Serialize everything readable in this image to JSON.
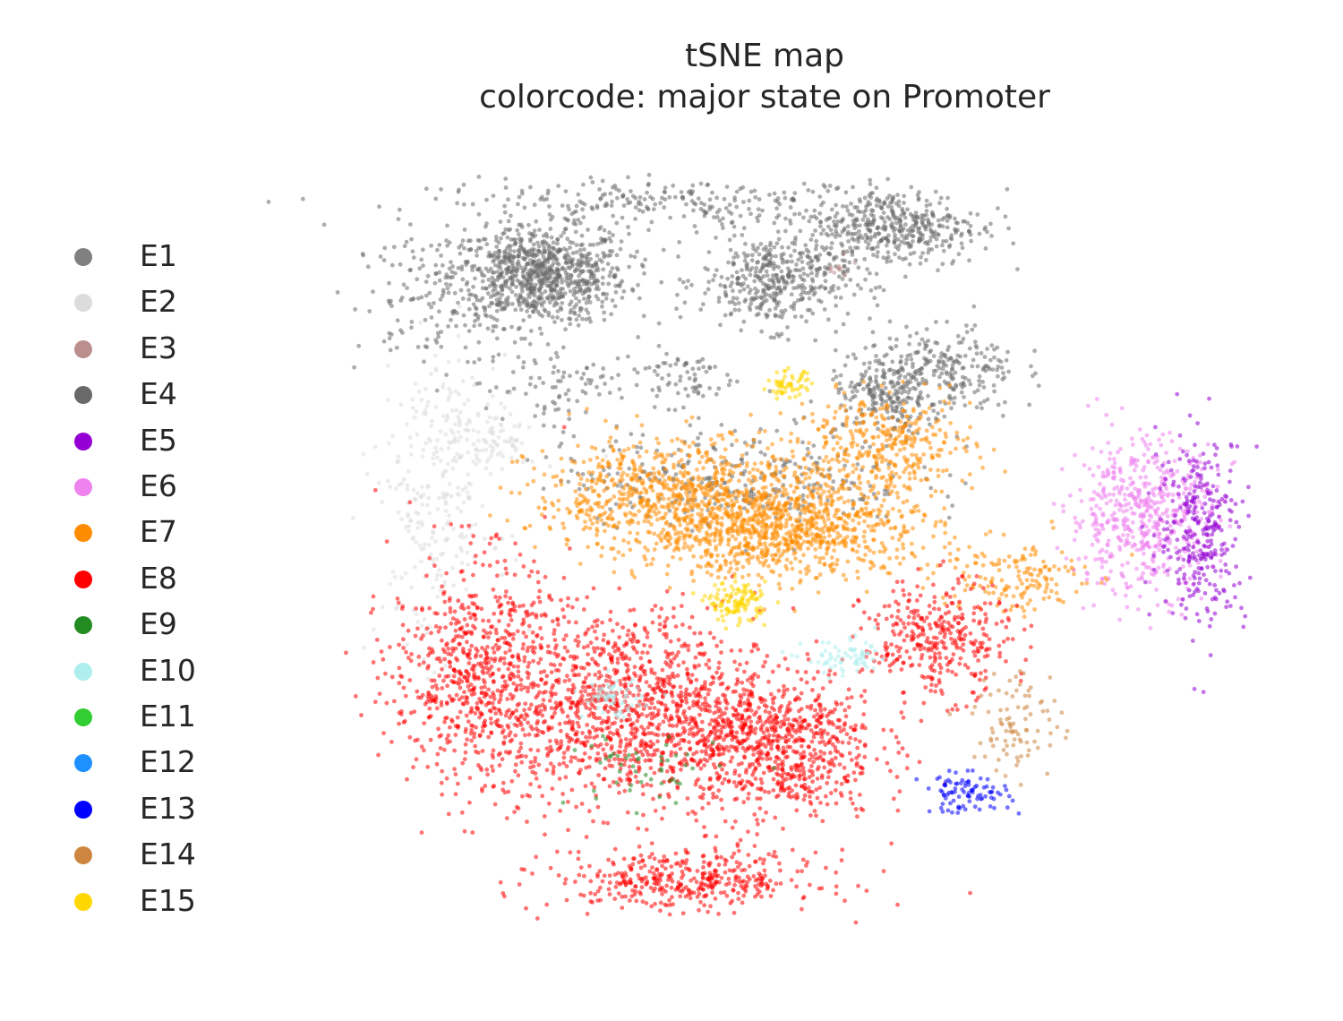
{
  "chart_data": {
    "type": "scatter",
    "title": "tSNE map",
    "subtitle": "colorcode: major state on Promoter",
    "xlabel": "",
    "ylabel": "",
    "axes_visible": false,
    "grid": false,
    "legend_position": "left",
    "xlim": [
      0,
      1
    ],
    "ylim": [
      0,
      1
    ],
    "series": [
      {
        "name": "E1",
        "color": "#808080"
      },
      {
        "name": "E2",
        "color": "#dcdcdc"
      },
      {
        "name": "E3",
        "color": "#bc8f8f"
      },
      {
        "name": "E4",
        "color": "#696969"
      },
      {
        "name": "E5",
        "color": "#9400d3"
      },
      {
        "name": "E6",
        "color": "#ee82ee"
      },
      {
        "name": "E7",
        "color": "#ff8c00"
      },
      {
        "name": "E8",
        "color": "#ff0000"
      },
      {
        "name": "E9",
        "color": "#228b22"
      },
      {
        "name": "E10",
        "color": "#afeeee"
      },
      {
        "name": "E11",
        "color": "#32cd32"
      },
      {
        "name": "E12",
        "color": "#1e90ff"
      },
      {
        "name": "E13",
        "color": "#0000ff"
      },
      {
        "name": "E14",
        "color": "#cd853f"
      },
      {
        "name": "E15",
        "color": "#ffd700"
      }
    ],
    "clusters": [
      {
        "series": "E4",
        "cx": 0.28,
        "cy": 0.58,
        "sx": 0.06,
        "sy": 0.05,
        "n": 900
      },
      {
        "series": "E4",
        "cx": 0.47,
        "cy": 0.73,
        "sx": 0.17,
        "sy": 0.025,
        "n": 260
      },
      {
        "series": "E4",
        "cx": 0.6,
        "cy": 0.57,
        "sx": 0.05,
        "sy": 0.05,
        "n": 420
      },
      {
        "series": "E4",
        "cx": 0.76,
        "cy": 0.68,
        "sx": 0.06,
        "sy": 0.04,
        "n": 420
      },
      {
        "series": "E4",
        "cx": 0.13,
        "cy": 0.52,
        "sx": 0.05,
        "sy": 0.08,
        "n": 110
      },
      {
        "series": "E4",
        "cx": 0.3,
        "cy": 0.35,
        "sx": 0.05,
        "sy": 0.05,
        "n": 90
      },
      {
        "series": "E4",
        "cx": 0.47,
        "cy": 0.37,
        "sx": 0.04,
        "sy": 0.03,
        "n": 70
      },
      {
        "series": "E4",
        "cx": 0.55,
        "cy": 0.16,
        "sx": 0.12,
        "sy": 0.05,
        "n": 300
      },
      {
        "series": "E4",
        "cx": 0.83,
        "cy": 0.38,
        "sx": 0.05,
        "sy": 0.05,
        "n": 250
      },
      {
        "series": "E4",
        "cx": 0.75,
        "cy": 0.33,
        "sx": 0.04,
        "sy": 0.04,
        "n": 200
      },
      {
        "series": "E2",
        "cx": 0.14,
        "cy": 0.1,
        "sx": 0.04,
        "sy": 0.15,
        "n": 240
      },
      {
        "series": "E2",
        "cx": 0.2,
        "cy": 0.24,
        "sx": 0.04,
        "sy": 0.04,
        "n": 120
      },
      {
        "series": "E7",
        "cx": 0.47,
        "cy": 0.12,
        "sx": 0.1,
        "sy": 0.06,
        "n": 800
      },
      {
        "series": "E7",
        "cx": 0.62,
        "cy": 0.05,
        "sx": 0.1,
        "sy": 0.05,
        "n": 900
      },
      {
        "series": "E7",
        "cx": 0.75,
        "cy": 0.23,
        "sx": 0.06,
        "sy": 0.05,
        "n": 350
      },
      {
        "series": "E7",
        "cx": 0.92,
        "cy": -0.05,
        "sx": 0.05,
        "sy": 0.04,
        "n": 150
      },
      {
        "series": "E8",
        "cx": 0.2,
        "cy": -0.25,
        "sx": 0.06,
        "sy": 0.12,
        "n": 700
      },
      {
        "series": "E8",
        "cx": 0.4,
        "cy": -0.32,
        "sx": 0.09,
        "sy": 0.1,
        "n": 1100
      },
      {
        "series": "E8",
        "cx": 0.6,
        "cy": -0.4,
        "sx": 0.07,
        "sy": 0.08,
        "n": 800
      },
      {
        "series": "E8",
        "cx": 0.48,
        "cy": -0.68,
        "sx": 0.09,
        "sy": 0.03,
        "n": 400
      },
      {
        "series": "E8",
        "cx": 0.82,
        "cy": -0.18,
        "sx": 0.05,
        "sy": 0.06,
        "n": 350
      },
      {
        "series": "E6",
        "cx": 1.1,
        "cy": 0.08,
        "sx": 0.05,
        "sy": 0.08,
        "n": 550
      },
      {
        "series": "E5",
        "cx": 1.18,
        "cy": 0.05,
        "sx": 0.03,
        "sy": 0.1,
        "n": 300
      },
      {
        "series": "E15",
        "cx": 0.55,
        "cy": -0.1,
        "sx": 0.02,
        "sy": 0.02,
        "n": 120
      },
      {
        "series": "E15",
        "cx": 0.62,
        "cy": 0.35,
        "sx": 0.015,
        "sy": 0.015,
        "n": 60
      },
      {
        "series": "E10",
        "cx": 0.38,
        "cy": -0.3,
        "sx": 0.02,
        "sy": 0.02,
        "n": 60
      },
      {
        "series": "E10",
        "cx": 0.7,
        "cy": -0.22,
        "sx": 0.03,
        "sy": 0.02,
        "n": 70
      },
      {
        "series": "E9",
        "cx": 0.42,
        "cy": -0.45,
        "sx": 0.05,
        "sy": 0.04,
        "n": 50
      },
      {
        "series": "E13",
        "cx": 0.86,
        "cy": -0.5,
        "sx": 0.03,
        "sy": 0.02,
        "n": 90
      },
      {
        "series": "E14",
        "cx": 0.93,
        "cy": -0.35,
        "sx": 0.03,
        "sy": 0.06,
        "n": 90
      },
      {
        "series": "E3",
        "cx": 0.69,
        "cy": 0.6,
        "sx": 0.01,
        "sy": 0.01,
        "n": 12
      }
    ]
  }
}
